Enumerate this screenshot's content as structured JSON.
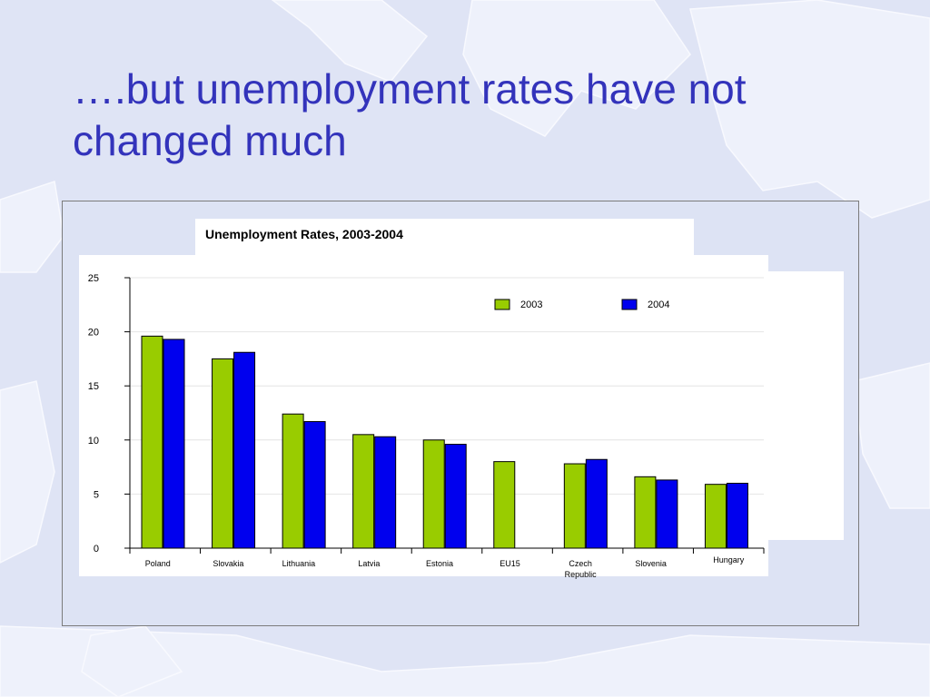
{
  "slide": {
    "title_line1": "….but unemployment rates have not",
    "title_line2": "changed much"
  },
  "colors": {
    "title": "#3333bb",
    "series_2003": "#99cc00",
    "series_2004": "#0000ee"
  },
  "chart_data": {
    "type": "bar",
    "title": "Unemployment Rates, 2003-2004",
    "categories": [
      "Poland",
      "Slovakia",
      "Lithuania",
      "Latvia",
      "Estonia",
      "EU15",
      "Czech Republic",
      "Slovenia",
      "Hungary"
    ],
    "series": [
      {
        "name": "2003",
        "color": "#99cc00",
        "values": [
          19.6,
          17.5,
          12.4,
          10.5,
          10.0,
          8.0,
          7.8,
          6.6,
          5.9
        ]
      },
      {
        "name": "2004",
        "color": "#0000ee",
        "values": [
          19.3,
          18.1,
          11.7,
          10.3,
          9.6,
          null,
          8.2,
          6.3,
          6.0
        ]
      }
    ],
    "yticks": [
      0,
      5,
      10,
      15,
      20,
      25
    ],
    "ylim": [
      0,
      25
    ],
    "xlabel": "",
    "ylabel": "",
    "legend_position": "top-right",
    "grid": true
  }
}
